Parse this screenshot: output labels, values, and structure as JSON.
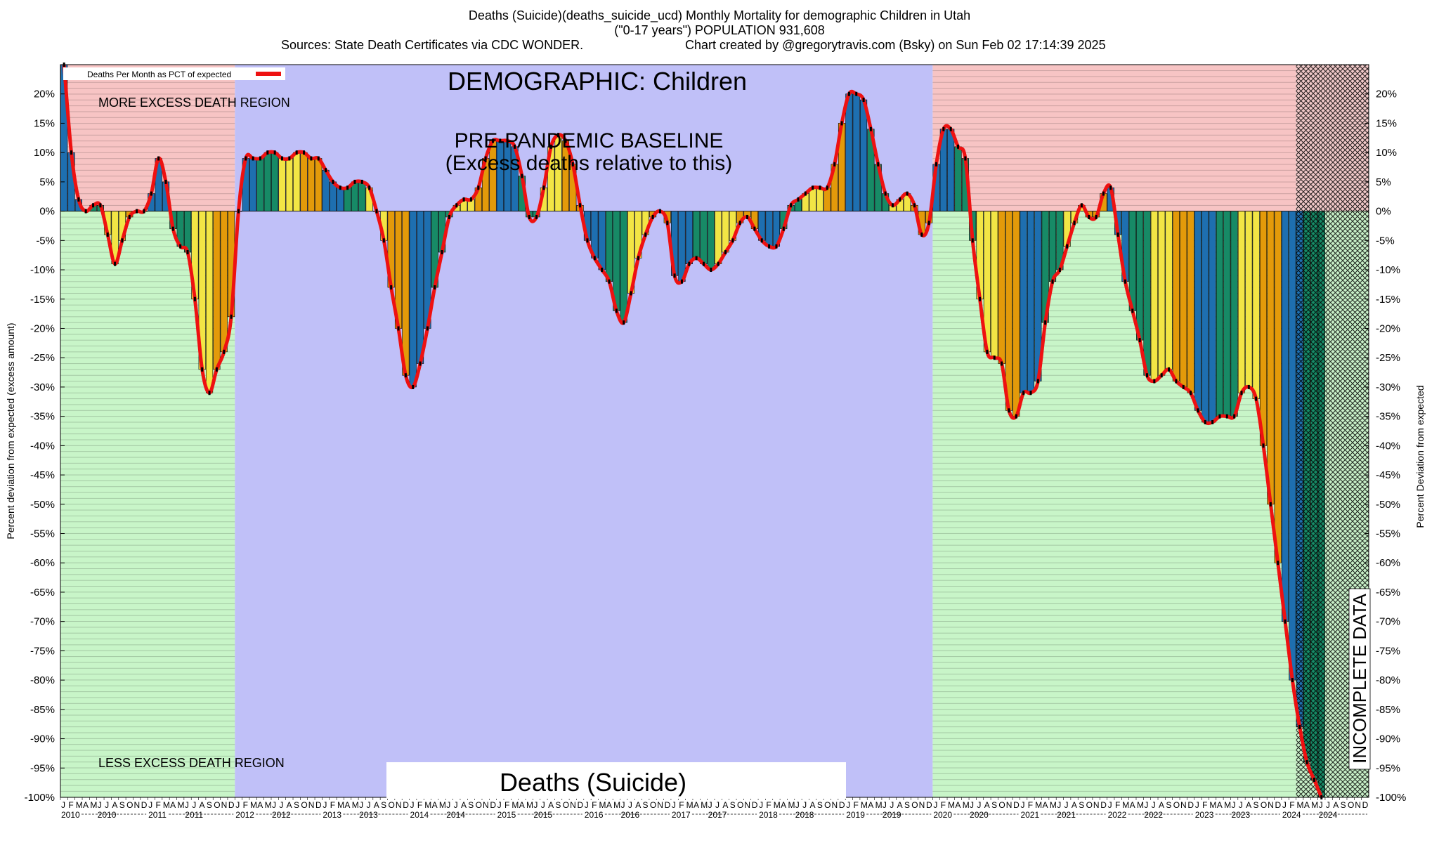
{
  "header": {
    "line1": "Deaths (Suicide)(deaths_suicide_ucd) Monthly Mortality for demographic Children in Utah",
    "line2": "(\"0-17 years\") POPULATION 931,608",
    "sources": "Sources: State Death Certificates via CDC WONDER.",
    "credit": "Chart created by @gregorytravis.com (Bsky) on Sun Feb 02 17:14:39 2025"
  },
  "chart_data": {
    "type": "bar",
    "ylim": [
      -100,
      25
    ],
    "yticks": [
      20,
      15,
      10,
      5,
      0,
      -5,
      -10,
      -15,
      -20,
      -25,
      -30,
      -35,
      -40,
      -45,
      -50,
      -55,
      -60,
      -65,
      -70,
      -75,
      -80,
      -85,
      -90,
      -95,
      -100
    ],
    "ytick_suffix": "%",
    "ylabel_left": "Percent deviation from expected (excess amount)",
    "ylabel_right": "Percent Deviation from expected",
    "legend": "Deaths Per Month as PCT of expected",
    "legend_position": "top-left",
    "series_color": "#ee1111",
    "month_letters": [
      "J",
      "F",
      "M",
      "A",
      "M",
      "J",
      "J",
      "A",
      "S",
      "O",
      "N",
      "D"
    ],
    "years": [
      "2010",
      "2011",
      "2012",
      "2013",
      "2014",
      "2015",
      "2016",
      "2017",
      "2018",
      "2019",
      "2020",
      "2021",
      "2022",
      "2023",
      "2024"
    ],
    "start": "2010-01",
    "region_labels": {
      "more": "MORE EXCESS DEATH REGION",
      "less": "LESS EXCESS DEATH REGION",
      "demographic": "DEMOGRAPHIC: Children",
      "baseline_1": "PRE-PANDEMIC BASELINE",
      "baseline_2": "(Excess deaths relative to this)",
      "cause": "Deaths (Suicide)",
      "incomplete": "INCOMPLETE DATA"
    },
    "baseline_years": [
      "2012",
      "2019"
    ],
    "incomplete_from": "2024-03",
    "values": [
      25,
      10,
      2,
      0,
      1,
      1,
      -4,
      -9,
      -5,
      -1,
      0,
      0,
      3,
      9,
      5,
      -3,
      -6,
      -7,
      -15,
      -27,
      -31,
      -27,
      -24,
      -18,
      0,
      9,
      9,
      9,
      10,
      10,
      9,
      9,
      10,
      10,
      9,
      9,
      7,
      5,
      4,
      4,
      5,
      5,
      4,
      0,
      -5,
      -13,
      -20,
      -28,
      -30,
      -26,
      -20,
      -13,
      -7,
      -1,
      1,
      2,
      2,
      4,
      9,
      12,
      12,
      12,
      11,
      6,
      -1,
      -1,
      4,
      11,
      13,
      12,
      8,
      1,
      -5,
      -8,
      -10,
      -12,
      -17,
      -19,
      -14,
      -8,
      -4,
      -1,
      0,
      -2,
      -11,
      -12,
      -9,
      -8,
      -9,
      -10,
      -9,
      -7,
      -5,
      -2,
      -1,
      -3,
      -5,
      -6,
      -6,
      -3,
      1,
      2,
      3,
      4,
      4,
      4,
      8,
      15,
      20,
      20,
      19,
      14,
      8,
      3,
      1,
      2,
      3,
      1,
      -4,
      -2,
      8,
      14,
      14,
      11,
      9,
      -5,
      -15,
      -24,
      -25,
      -26,
      -34,
      -35,
      -31,
      -31,
      -29,
      -19,
      -12,
      -10,
      -6,
      -2,
      1,
      -1,
      -1,
      3,
      4,
      -4,
      -12,
      -17,
      -22,
      -28,
      -29,
      -28,
      -27,
      -29,
      -30,
      -31,
      -34,
      -36,
      -36,
      -35,
      -35,
      -35,
      -31,
      -30,
      -32,
      -40,
      -50,
      -60,
      -70,
      -80,
      -88,
      -94,
      -97,
      -100
    ]
  }
}
